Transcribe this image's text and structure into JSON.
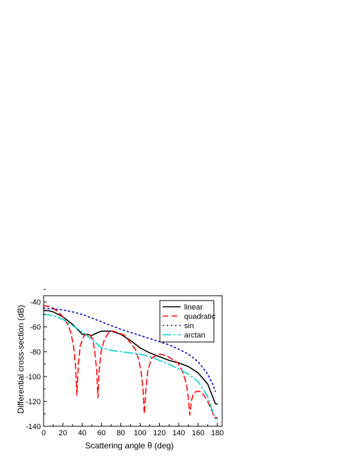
{
  "chart_data": {
    "type": "line",
    "xlabel": "Scattering angle θ (deg)",
    "ylabel": "Differential cross-section (dB)",
    "xlim": [
      0,
      185
    ],
    "ylim": [
      -140,
      -35
    ],
    "xticks": [
      0,
      20,
      40,
      60,
      80,
      100,
      120,
      140,
      160,
      180
    ],
    "yticks": [
      -140,
      -120,
      -100,
      -80,
      -60,
      -40
    ],
    "xtick_labels": [
      "0",
      "20",
      "40",
      "60",
      "80",
      "100",
      "120",
      "140",
      "160",
      "180"
    ],
    "ytick_labels": [
      "-140",
      "-120",
      "-100",
      "-80",
      "-60",
      "-40"
    ],
    "grid": false,
    "legend_position": "top-right",
    "series": [
      {
        "name": "linear",
        "color": "#000000",
        "dash": "solid",
        "points": [
          [
            0,
            -47
          ],
          [
            5,
            -47
          ],
          [
            10,
            -48
          ],
          [
            20,
            -52
          ],
          [
            30,
            -58
          ],
          [
            35,
            -62
          ],
          [
            40,
            -66
          ],
          [
            45,
            -66
          ],
          [
            50,
            -67
          ],
          [
            55,
            -65
          ],
          [
            60,
            -63.5
          ],
          [
            70,
            -63.5
          ],
          [
            80,
            -66
          ],
          [
            90,
            -71
          ],
          [
            100,
            -77
          ],
          [
            110,
            -81
          ],
          [
            120,
            -84
          ],
          [
            130,
            -87
          ],
          [
            140,
            -89
          ],
          [
            150,
            -92
          ],
          [
            160,
            -97
          ],
          [
            170,
            -106
          ],
          [
            175,
            -116
          ],
          [
            178,
            -122
          ],
          [
            180,
            -122
          ]
        ]
      },
      {
        "name": "quadratic",
        "color": "#ff0000",
        "dash": "8,5",
        "points": [
          [
            0,
            -43
          ],
          [
            5,
            -43.5
          ],
          [
            10,
            -45
          ],
          [
            15,
            -48
          ],
          [
            20,
            -52
          ],
          [
            25,
            -58
          ],
          [
            28,
            -64
          ],
          [
            31,
            -75
          ],
          [
            33,
            -90
          ],
          [
            34.5,
            -115
          ],
          [
            36,
            -90
          ],
          [
            38,
            -75
          ],
          [
            42,
            -67
          ],
          [
            47,
            -65.5
          ],
          [
            51,
            -70
          ],
          [
            53,
            -80
          ],
          [
            55,
            -95
          ],
          [
            56.3,
            -117
          ],
          [
            57.5,
            -95
          ],
          [
            59.5,
            -80
          ],
          [
            63,
            -70
          ],
          [
            68,
            -64
          ],
          [
            72,
            -63.5
          ],
          [
            78,
            -65
          ],
          [
            84,
            -67
          ],
          [
            89,
            -72
          ],
          [
            95,
            -78
          ],
          [
            98,
            -85
          ],
          [
            101,
            -96
          ],
          [
            103,
            -110
          ],
          [
            104.4,
            -130
          ],
          [
            106,
            -110
          ],
          [
            108,
            -95
          ],
          [
            112,
            -85
          ],
          [
            120,
            -82
          ],
          [
            127,
            -83
          ],
          [
            133,
            -86
          ],
          [
            139,
            -89
          ],
          [
            144,
            -96
          ],
          [
            148,
            -106
          ],
          [
            150,
            -118
          ],
          [
            151.5,
            -131
          ],
          [
            153,
            -120
          ],
          [
            155,
            -114
          ],
          [
            158,
            -112
          ],
          [
            162,
            -112
          ],
          [
            166,
            -115
          ],
          [
            170,
            -120
          ],
          [
            174,
            -127
          ],
          [
            177,
            -133
          ],
          [
            180,
            -133
          ]
        ]
      },
      {
        "name": "sin",
        "color": "#0000cc",
        "dash": "2,4",
        "points": [
          [
            0,
            -45
          ],
          [
            10,
            -45.5
          ],
          [
            20,
            -46.5
          ],
          [
            30,
            -48
          ],
          [
            40,
            -50
          ],
          [
            50,
            -53
          ],
          [
            60,
            -56
          ],
          [
            70,
            -59
          ],
          [
            80,
            -62
          ],
          [
            90,
            -64.5
          ],
          [
            100,
            -67
          ],
          [
            110,
            -69.5
          ],
          [
            120,
            -72
          ],
          [
            130,
            -74.5
          ],
          [
            140,
            -78
          ],
          [
            150,
            -82
          ],
          [
            160,
            -88
          ],
          [
            170,
            -98
          ],
          [
            175,
            -106
          ],
          [
            178,
            -112
          ]
        ]
      },
      {
        "name": "arctan",
        "color": "#00cccc",
        "dash": "12,4,2,4",
        "points": [
          [
            0,
            -50
          ],
          [
            10,
            -51
          ],
          [
            20,
            -54
          ],
          [
            30,
            -59
          ],
          [
            40,
            -64
          ],
          [
            50,
            -70
          ],
          [
            60,
            -77
          ],
          [
            70,
            -79
          ],
          [
            80,
            -80
          ],
          [
            90,
            -81
          ],
          [
            100,
            -82
          ],
          [
            110,
            -84
          ],
          [
            120,
            -87
          ],
          [
            130,
            -90
          ],
          [
            140,
            -94
          ],
          [
            150,
            -98
          ],
          [
            160,
            -104
          ],
          [
            170,
            -116
          ],
          [
            175,
            -128
          ],
          [
            178,
            -134
          ],
          [
            180,
            -134
          ]
        ]
      }
    ]
  }
}
